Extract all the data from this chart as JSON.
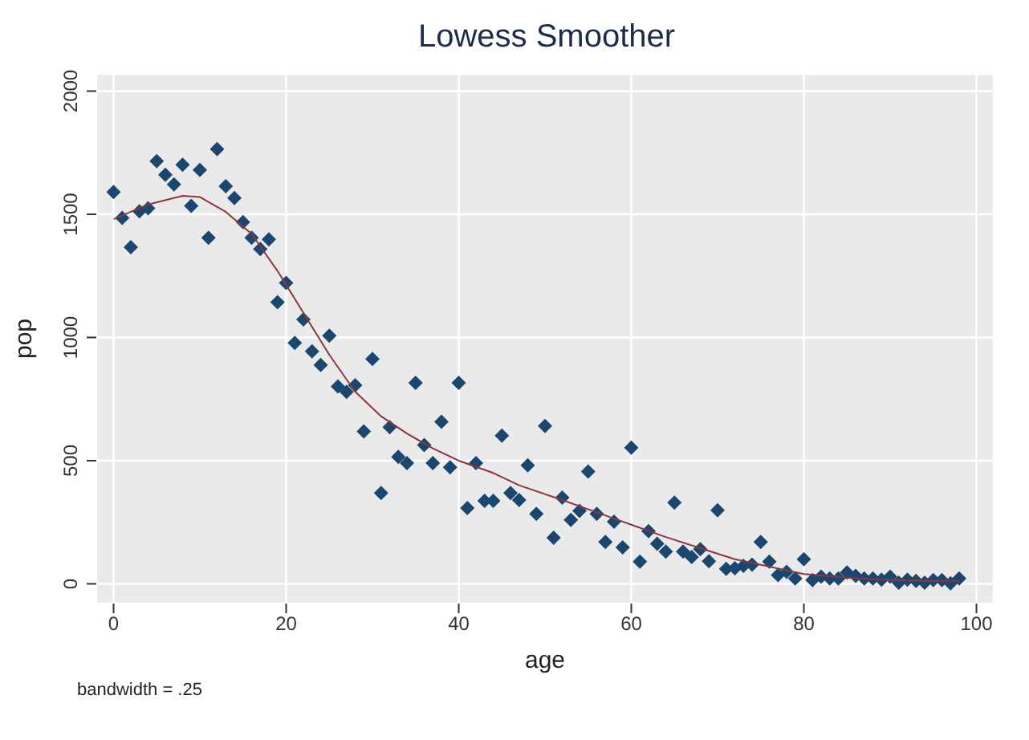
{
  "chart_data": {
    "type": "scatter",
    "title": "Lowess Smoother",
    "xlabel": "age",
    "ylabel": "pop",
    "annotations": [
      "bandwidth = .25"
    ],
    "x": [
      0,
      1,
      2,
      3,
      4,
      5,
      6,
      7,
      8,
      9,
      10,
      11,
      12,
      13,
      14,
      15,
      16,
      17,
      18,
      19,
      20,
      21,
      22,
      23,
      24,
      25,
      26,
      27,
      28,
      29,
      30,
      31,
      32,
      33,
      34,
      35,
      36,
      37,
      38,
      39,
      40,
      41,
      42,
      43,
      44,
      45,
      46,
      47,
      48,
      49,
      50,
      51,
      52,
      53,
      54,
      55,
      56,
      57,
      58,
      59,
      60,
      61,
      62,
      63,
      64,
      65,
      66,
      67,
      68,
      69,
      70,
      71,
      72,
      73,
      74,
      75,
      76,
      77,
      78,
      79,
      80,
      81,
      82,
      83,
      84,
      85,
      86,
      87,
      88,
      89,
      90,
      91,
      92,
      93,
      94,
      95,
      96,
      97,
      98
    ],
    "series": [
      {
        "color": "#1a476f",
        "values": [
          1590,
          1485,
          1366,
          1512,
          1524,
          1716,
          1660,
          1621,
          1701,
          1534,
          1680,
          1405,
          1765,
          1614,
          1566,
          1468,
          1405,
          1359,
          1398,
          1143,
          1221,
          978,
          1073,
          944,
          888,
          1007,
          801,
          779,
          806,
          619,
          913,
          369,
          636,
          515,
          490,
          816,
          563,
          490,
          658,
          473,
          816,
          308,
          490,
          337,
          337,
          602,
          369,
          340,
          481,
          284,
          641,
          187,
          350,
          260,
          296,
          456,
          284,
          170,
          252,
          148,
          553,
          90,
          214,
          163,
          131,
          330,
          131,
          109,
          141,
          92,
          299,
          61,
          63,
          73,
          78,
          170,
          90,
          36,
          49,
          22,
          100,
          15,
          29,
          22,
          22,
          46,
          32,
          22,
          22,
          17,
          29,
          5,
          17,
          12,
          5,
          15,
          15,
          2,
          22
        ]
      },
      {
        "type": "line",
        "color": "#90353b",
        "marker": "none",
        "line_style": "solid",
        "x": [
          0,
          4,
          8,
          10,
          13,
          16,
          19,
          22,
          25,
          28,
          31,
          34,
          37,
          40,
          44,
          47,
          52,
          56,
          60,
          64,
          68,
          72,
          76,
          80,
          85,
          90,
          95,
          98
        ],
        "values": [
          1480,
          1540,
          1575,
          1570,
          1510,
          1420,
          1270,
          1100,
          930,
          780,
          680,
          610,
          550,
          500,
          450,
          400,
          340,
          290,
          240,
          190,
          145,
          100,
          70,
          40,
          25,
          15,
          12,
          12
        ]
      }
    ],
    "marker": "diamond",
    "xlim": [
      -2,
      102
    ],
    "ylim": [
      -80,
      2070
    ],
    "xticks": [
      0,
      20,
      40,
      60,
      80,
      100
    ],
    "yticks": [
      0,
      500,
      1000,
      1500,
      2000
    ],
    "grid": true,
    "legend": false
  }
}
